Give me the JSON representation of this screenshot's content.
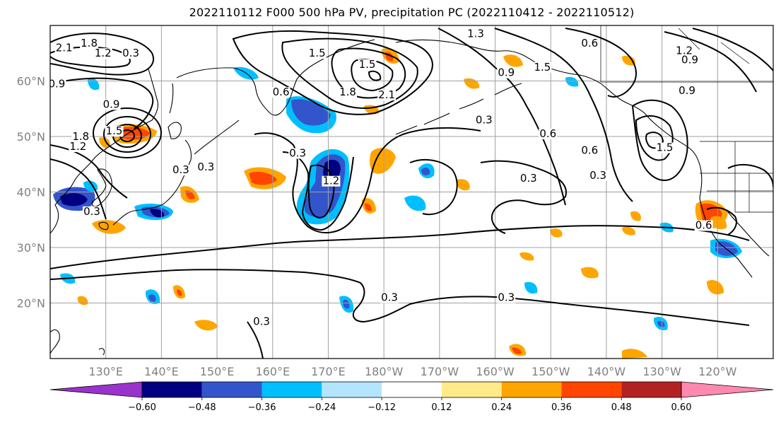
{
  "title": "2022110112 F000 500 hPa PV, precipitation PC (2022110412 - 2022110512)",
  "map": {
    "projection": "PlateCarree",
    "lon_range_deg_east": [
      120,
      250
    ],
    "lat_range_deg": [
      10,
      70
    ],
    "lat_ticks": [
      {
        "value": 20,
        "label": "20°N"
      },
      {
        "value": 30,
        "label": "30°N"
      },
      {
        "value": 40,
        "label": "40°N"
      },
      {
        "value": 50,
        "label": "50°N"
      },
      {
        "value": 60,
        "label": "60°N"
      }
    ],
    "lon_ticks": [
      {
        "value": 130,
        "label": "130°E"
      },
      {
        "value": 140,
        "label": "140°E"
      },
      {
        "value": 150,
        "label": "150°E"
      },
      {
        "value": 160,
        "label": "160°E"
      },
      {
        "value": 170,
        "label": "170°E"
      },
      {
        "value": 180,
        "label": "180°W"
      },
      {
        "value": 190,
        "label": "170°W"
      },
      {
        "value": 200,
        "label": "160°W"
      },
      {
        "value": 210,
        "label": "150°W"
      },
      {
        "value": 220,
        "label": "140°W"
      },
      {
        "value": 230,
        "label": "130°W"
      },
      {
        "value": 240,
        "label": "120°W"
      }
    ],
    "grid": true,
    "pv_contour_labels": [
      {
        "text": "1.8",
        "lon": 127.0,
        "lat": 66.3
      },
      {
        "text": "2.1",
        "lon": 122.5,
        "lat": 65.5
      },
      {
        "text": "1.2",
        "lon": 129.5,
        "lat": 64.5
      },
      {
        "text": "0.3",
        "lon": 134.5,
        "lat": 64.5
      },
      {
        "text": "0.9",
        "lon": 121.2,
        "lat": 59.0
      },
      {
        "text": "0.9",
        "lon": 131.0,
        "lat": 55.3
      },
      {
        "text": "1.5",
        "lon": 131.5,
        "lat": 50.5
      },
      {
        "text": "1.8",
        "lon": 125.5,
        "lat": 49.5
      },
      {
        "text": "1.2",
        "lon": 125.0,
        "lat": 47.7
      },
      {
        "text": "0.3",
        "lon": 148.0,
        "lat": 44.0
      },
      {
        "text": "0.6",
        "lon": 161.5,
        "lat": 57.5
      },
      {
        "text": "0.3",
        "lon": 164.5,
        "lat": 46.5
      },
      {
        "text": "1.2",
        "lon": 170.5,
        "lat": 41.5
      },
      {
        "text": "1.5",
        "lon": 168.0,
        "lat": 64.5
      },
      {
        "text": "1.8",
        "lon": 173.5,
        "lat": 57.5
      },
      {
        "text": "2.1",
        "lon": 180.5,
        "lat": 57.0
      },
      {
        "text": "1.5",
        "lon": 177.0,
        "lat": 62.5
      },
      {
        "text": "1.3",
        "lon": 196.5,
        "lat": 68.0
      },
      {
        "text": "0.9",
        "lon": 202.0,
        "lat": 61.0
      },
      {
        "text": "1.5",
        "lon": 208.5,
        "lat": 62.0
      },
      {
        "text": "0.3",
        "lon": 198.0,
        "lat": 52.5
      },
      {
        "text": "0.6",
        "lon": 217.0,
        "lat": 66.3
      },
      {
        "text": "0.9",
        "lon": 234.5,
        "lat": 57.8
      },
      {
        "text": "0.6",
        "lon": 209.5,
        "lat": 50.0
      },
      {
        "text": "0.6",
        "lon": 217.0,
        "lat": 47.0
      },
      {
        "text": "0.3",
        "lon": 218.5,
        "lat": 42.5
      },
      {
        "text": "0.3",
        "lon": 206.0,
        "lat": 42.0
      },
      {
        "text": "1.5",
        "lon": 230.5,
        "lat": 47.5
      },
      {
        "text": "1.2",
        "lon": 234.0,
        "lat": 65.0
      },
      {
        "text": "0.9",
        "lon": 235.0,
        "lat": 63.3
      },
      {
        "text": "0.6",
        "lon": 237.5,
        "lat": 33.5
      },
      {
        "text": "0.3",
        "lon": 127.5,
        "lat": 36.0
      },
      {
        "text": "0.3",
        "lon": 143.5,
        "lat": 43.5
      },
      {
        "text": "0.3",
        "lon": 181.0,
        "lat": 20.5
      },
      {
        "text": "0.3",
        "lon": 202.0,
        "lat": 20.5
      },
      {
        "text": "0.3",
        "lon": 158.0,
        "lat": 16.2
      }
    ]
  },
  "colorbar": {
    "tick_labels": [
      "−0.60",
      "−0.48",
      "−0.36",
      "−0.24",
      "−0.12",
      "0.12",
      "0.24",
      "0.36",
      "0.48",
      "0.60"
    ],
    "bins": [
      {
        "from": null,
        "to": -0.6,
        "color": "#9933cc"
      },
      {
        "from": -0.6,
        "to": -0.48,
        "color": "#000080"
      },
      {
        "from": -0.48,
        "to": -0.36,
        "color": "#3355cc"
      },
      {
        "from": -0.36,
        "to": -0.24,
        "color": "#00bfff"
      },
      {
        "from": -0.24,
        "to": -0.12,
        "color": "#b3e5ff"
      },
      {
        "from": -0.12,
        "to": 0.12,
        "color": "#ffffff"
      },
      {
        "from": 0.12,
        "to": 0.24,
        "color": "#ffeb8a"
      },
      {
        "from": 0.24,
        "to": 0.36,
        "color": "#ffa500"
      },
      {
        "from": 0.36,
        "to": 0.48,
        "color": "#ff4500"
      },
      {
        "from": 0.48,
        "to": 0.6,
        "color": "#b22222"
      },
      {
        "from": 0.6,
        "to": null,
        "color": "#ff88b0"
      }
    ],
    "extend": "both"
  }
}
